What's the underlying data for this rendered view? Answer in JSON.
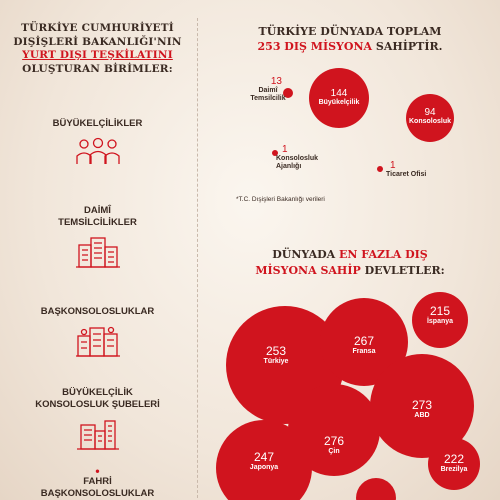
{
  "left": {
    "title_line1": "TÜRKİYE CUMHURİYETİ",
    "title_line2": "DIŞİŞLERİ BAKANLIĞI'NIN",
    "title_line3": "YURT DIŞI TEŞKİLATINI",
    "title_line4": "OLUŞTURAN BİRİMLER:",
    "units": [
      {
        "label": "BÜYÜKELÇİLİKLER",
        "icon": "people-group-icon"
      },
      {
        "label_line1": "DAİMÎ",
        "label_line2": "TEMSİLCİLİKLER",
        "icon": "building-icon"
      },
      {
        "label": "BAŞKONSOLOSLUKLAR",
        "icon": "city-buildings-icon"
      },
      {
        "label_line1": "BÜYÜKELÇİLİK",
        "label_line2": "KONSOLOSLUK ŞUBELERİ",
        "icon": "office-buildings-icon"
      },
      {
        "bullet": "•",
        "label_line1": "FAHRİ",
        "label_line2": "BAŞKONSOLOSLUKLAR"
      }
    ]
  },
  "right_top": {
    "title_line1": "TÜRKİYE DÜNYADA TOPLAM",
    "title_red": "253 DIŞ MİSYONA",
    "title_rest": " SAHİPTİR.",
    "items": {
      "daimi": {
        "value": "13",
        "label_line1": "Daimî",
        "label_line2": "Temsilcilik"
      },
      "buyukelcilik": {
        "value": "144",
        "label": "Büyükelçilik"
      },
      "konsolosluk": {
        "value": "94",
        "label": "Konsolosluk"
      },
      "ajanlik": {
        "value": "1",
        "label_line1": "Konsolosluk",
        "label_line2": "Ajanlığı"
      },
      "ticaret": {
        "value": "1",
        "label": "Ticaret Ofisi"
      }
    },
    "note": "*T.C. Dışişleri Bakanlığı verileri"
  },
  "right_bottom": {
    "title_pre": "DÜNYADA ",
    "title_red1": "EN FAZLA DIŞ",
    "title_red2": "MİSYONA SAHİP",
    "title_rest": " DEVLETLER:",
    "countries": [
      {
        "name": "İspanya",
        "value": "215"
      },
      {
        "name": "Fransa",
        "value": "267"
      },
      {
        "name": "Türkiye",
        "value": "253"
      },
      {
        "name": "ABD",
        "value": "273"
      },
      {
        "name": "Çin",
        "value": "276"
      },
      {
        "name": "Japonya",
        "value": "247"
      },
      {
        "name": "Brezilya",
        "value": "222"
      }
    ]
  },
  "chart_data": {
    "type": "bubble",
    "title": "DÜNYADA EN FAZLA DIŞ MİSYONA SAHİP DEVLETLER:",
    "categories": [
      "İspanya",
      "Fransa",
      "Türkiye",
      "ABD",
      "Çin",
      "Japonya",
      "Brezilya"
    ],
    "values": [
      215,
      267,
      253,
      273,
      276,
      247,
      222
    ]
  },
  "colors": {
    "accent": "#d0141e",
    "text": "#3a2a22",
    "background": "#f3e9de"
  }
}
